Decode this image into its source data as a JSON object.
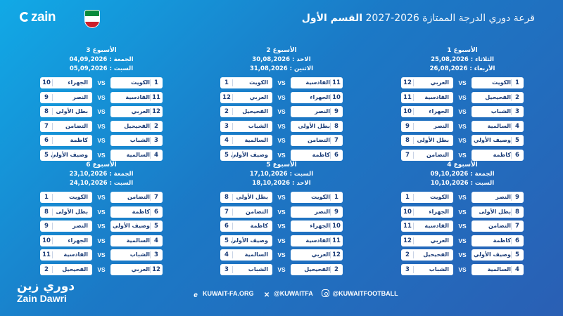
{
  "header": {
    "brand": "zain",
    "title_strong": "القسم الأول",
    "title_light": "قرعة دوري الدرجة الممتازة 2026-2027"
  },
  "weeks": [
    {
      "title": "الأسبوع 1",
      "dates": [
        "الثلاثاء : 25,08,2026",
        "الأربعاء : 26,08,2026"
      ],
      "matches": [
        {
          "home_num": "1",
          "home": "الكويت",
          "away": "العربي",
          "away_num": "12"
        },
        {
          "home_num": "2",
          "home": "الفحيحيل",
          "away": "القادسية",
          "away_num": "11"
        },
        {
          "home_num": "3",
          "home": "الشباب",
          "away": "الجهراء",
          "away_num": "10"
        },
        {
          "home_num": "4",
          "home": "السالمية",
          "away": "النصر",
          "away_num": "9"
        },
        {
          "home_num": "5",
          "home": "وصيف الأولي",
          "away": "بطل الأولى",
          "away_num": "8"
        },
        {
          "home_num": "6",
          "home": "كاظمة",
          "away": "التضامن",
          "away_num": "7"
        }
      ]
    },
    {
      "title": "الأسبوع 2",
      "dates": [
        "الاحد : 30,08,2026",
        "الاثنين : 31,08,2026"
      ],
      "matches": [
        {
          "home_num": "11",
          "home": "القادسية",
          "away": "الكويت",
          "away_num": "1"
        },
        {
          "home_num": "10",
          "home": "الجهراء",
          "away": "العربي",
          "away_num": "12"
        },
        {
          "home_num": "9",
          "home": "النصر",
          "away": "الفحيحيل",
          "away_num": "2"
        },
        {
          "home_num": "8",
          "home": "بطل الأولى",
          "away": "الشباب",
          "away_num": "3"
        },
        {
          "home_num": "7",
          "home": "التضامن",
          "away": "السالمية",
          "away_num": "4"
        },
        {
          "home_num": "6",
          "home": "كاظمة",
          "away": "وصيف الأولي",
          "away_num": "5"
        }
      ]
    },
    {
      "title": "الأسبوع 3",
      "dates": [
        "الجمعة : 04,09,2026",
        "السبت : 05,09,2026"
      ],
      "matches": [
        {
          "home_num": "1",
          "home": "الكويت",
          "away": "الجهراء",
          "away_num": "10"
        },
        {
          "home_num": "11",
          "home": "القادسية",
          "away": "النصر",
          "away_num": "9"
        },
        {
          "home_num": "12",
          "home": "العربي",
          "away": "بطل الأولى",
          "away_num": "8"
        },
        {
          "home_num": "2",
          "home": "الفحيحيل",
          "away": "التضامن",
          "away_num": "7"
        },
        {
          "home_num": "3",
          "home": "الشباب",
          "away": "كاظمة",
          "away_num": "6"
        },
        {
          "home_num": "4",
          "home": "السالمية",
          "away": "وصيف الأولي",
          "away_num": "5"
        }
      ]
    },
    {
      "title": "الأسبوع 4",
      "dates": [
        "الجمعة : 09,10,2026",
        "السبت : 10,10,2026"
      ],
      "matches": [
        {
          "home_num": "9",
          "home": "النصر",
          "away": "الكويت",
          "away_num": "1"
        },
        {
          "home_num": "8",
          "home": "بطل الأولى",
          "away": "الجهراء",
          "away_num": "10"
        },
        {
          "home_num": "7",
          "home": "التضامن",
          "away": "القادسية",
          "away_num": "11"
        },
        {
          "home_num": "6",
          "home": "كاظمة",
          "away": "العربي",
          "away_num": "12"
        },
        {
          "home_num": "5",
          "home": "وصيف الأولي",
          "away": "الفحيحيل",
          "away_num": "2"
        },
        {
          "home_num": "4",
          "home": "السالمية",
          "away": "الشباب",
          "away_num": "3"
        }
      ]
    },
    {
      "title": "الأسبوع 5",
      "dates": [
        "السبت : 17,10,2026",
        "الاحد : 18,10,2026"
      ],
      "matches": [
        {
          "home_num": "1",
          "home": "الكويت",
          "away": "بطل الأولى",
          "away_num": "8"
        },
        {
          "home_num": "9",
          "home": "النصر",
          "away": "التضامن",
          "away_num": "7"
        },
        {
          "home_num": "10",
          "home": "الجهراء",
          "away": "كاظمة",
          "away_num": "6"
        },
        {
          "home_num": "11",
          "home": "القادسية",
          "away": "وصيف الأولي",
          "away_num": "5"
        },
        {
          "home_num": "12",
          "home": "العربي",
          "away": "السالمية",
          "away_num": "4"
        },
        {
          "home_num": "2",
          "home": "الفحيحيل",
          "away": "الشباب",
          "away_num": "3"
        }
      ]
    },
    {
      "title": "الأسبوع 6",
      "dates": [
        "الجمعة : 23,10,2026",
        "السبت : 24,10,2026"
      ],
      "matches": [
        {
          "home_num": "7",
          "home": "التضامن",
          "away": "الكويت",
          "away_num": "1"
        },
        {
          "home_num": "6",
          "home": "كاظمة",
          "away": "بطل الأولى",
          "away_num": "8"
        },
        {
          "home_num": "5",
          "home": "وصيف الأولي",
          "away": "النصر",
          "away_num": "9"
        },
        {
          "home_num": "4",
          "home": "السالمية",
          "away": "الجهراء",
          "away_num": "10"
        },
        {
          "home_num": "3",
          "home": "الشباب",
          "away": "القادسية",
          "away_num": "11"
        },
        {
          "home_num": "12",
          "home": "العربي",
          "away": "الفحيحيل",
          "away_num": "2"
        }
      ]
    }
  ],
  "vs_label": "VS",
  "footer": {
    "logo_ar": "دوري زين",
    "logo_en": "Zain Dawri",
    "website": "KUWAIT-FA.ORG",
    "x_handle": "@KUWAITFA",
    "instagram": "@KUWAITFOOTBALL"
  }
}
